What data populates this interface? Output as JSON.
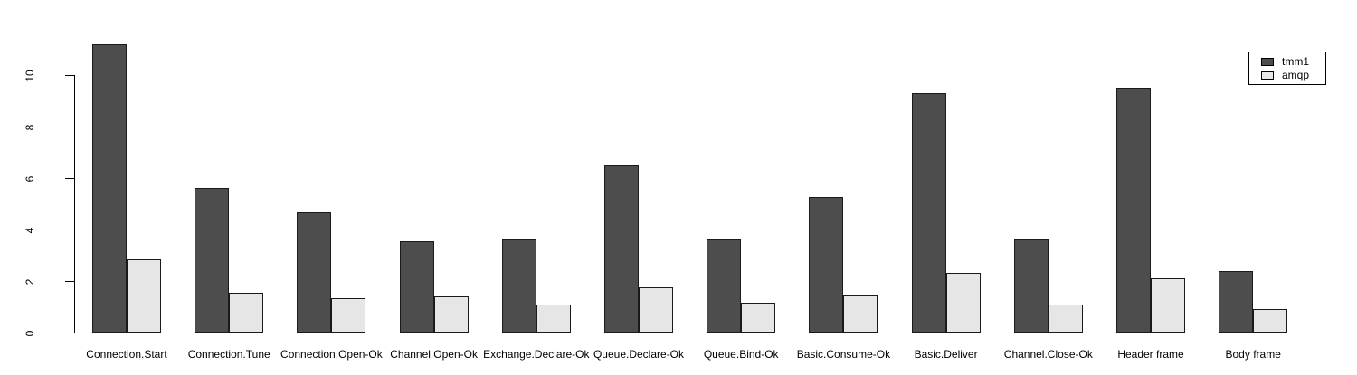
{
  "chart_data": {
    "type": "bar",
    "categories": [
      "Connection.Start",
      "Connection.Tune",
      "Connection.Open-Ok",
      "Channel.Open-Ok",
      "Exchange.Declare-Ok",
      "Queue.Declare-Ok",
      "Queue.Bind-Ok",
      "Basic.Consume-Ok",
      "Basic.Deliver",
      "Channel.Close-Ok",
      "Header frame",
      "Body frame"
    ],
    "series": [
      {
        "name": "tmm1",
        "color": "#4D4D4D",
        "values": [
          11.2,
          5.6,
          4.65,
          3.55,
          3.6,
          6.5,
          3.6,
          5.25,
          9.3,
          3.6,
          9.5,
          2.4
        ]
      },
      {
        "name": "amqp",
        "color": "#E6E6E6",
        "values": [
          2.85,
          1.55,
          1.35,
          1.4,
          1.1,
          1.75,
          1.15,
          1.45,
          2.3,
          1.1,
          2.1,
          0.9
        ]
      }
    ],
    "title": "",
    "xlabel": "",
    "ylabel": "",
    "ylim": [
      0,
      11.5
    ],
    "yticks": [
      0,
      2,
      4,
      6,
      8,
      10
    ],
    "grid": false,
    "legend_position": "top-right",
    "bar_border_color": "#1a1a1a",
    "axis_color": "#000000",
    "background_color": "#FFFFFF"
  },
  "legend": {
    "entries": [
      {
        "label": "tmm1",
        "swatch_color": "#4D4D4D"
      },
      {
        "label": "amqp",
        "swatch_color": "#E6E6E6"
      }
    ]
  }
}
